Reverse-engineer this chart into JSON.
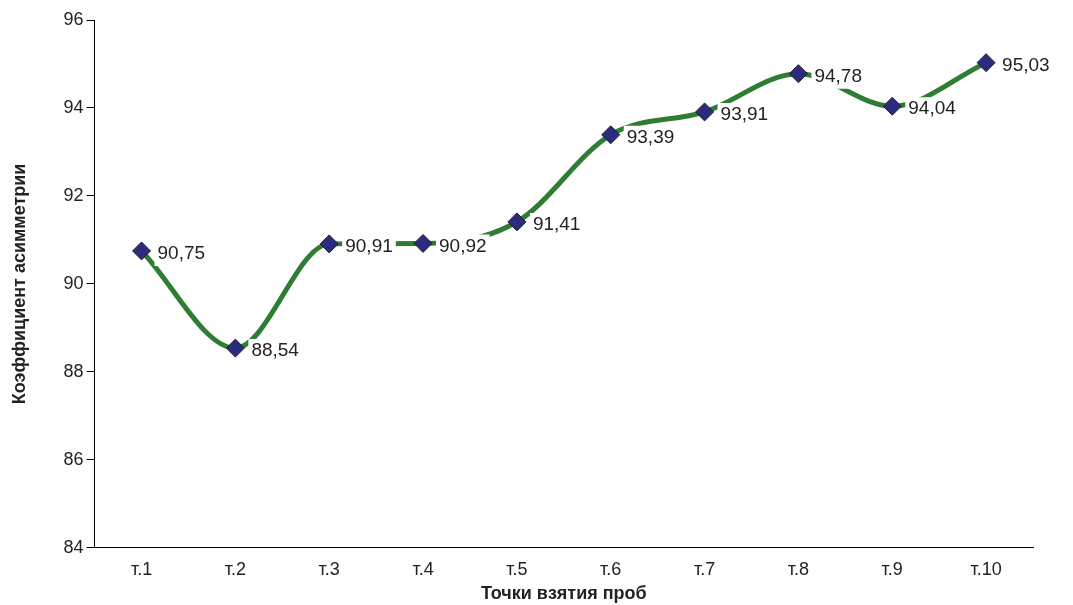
{
  "chart_data": {
    "type": "line",
    "xlabel": "Точки взятия проб",
    "ylabel": "Коэффициент асимметрии",
    "categories": [
      "т.1",
      "т.2",
      "т.3",
      "т.4",
      "т.5",
      "т.6",
      "т.7",
      "т.8",
      "т.9",
      "т.10"
    ],
    "series": [
      {
        "color": "#2e7d32",
        "values": [
          90.75,
          88.54,
          90.91,
          90.92,
          91.41,
          93.39,
          93.91,
          94.78,
          94.04,
          95.03
        ],
        "value_labels": [
          "90,75",
          "88,54",
          "90,91",
          "90,92",
          "91,41",
          "93,39",
          "93,91",
          "94,78",
          "94,04",
          "95,03"
        ]
      }
    ],
    "ylim": [
      84,
      96
    ],
    "yticks": [
      84,
      86,
      88,
      90,
      92,
      94,
      96
    ],
    "grid": false,
    "legend": false,
    "marker": "diamond",
    "line_style": "solid"
  }
}
